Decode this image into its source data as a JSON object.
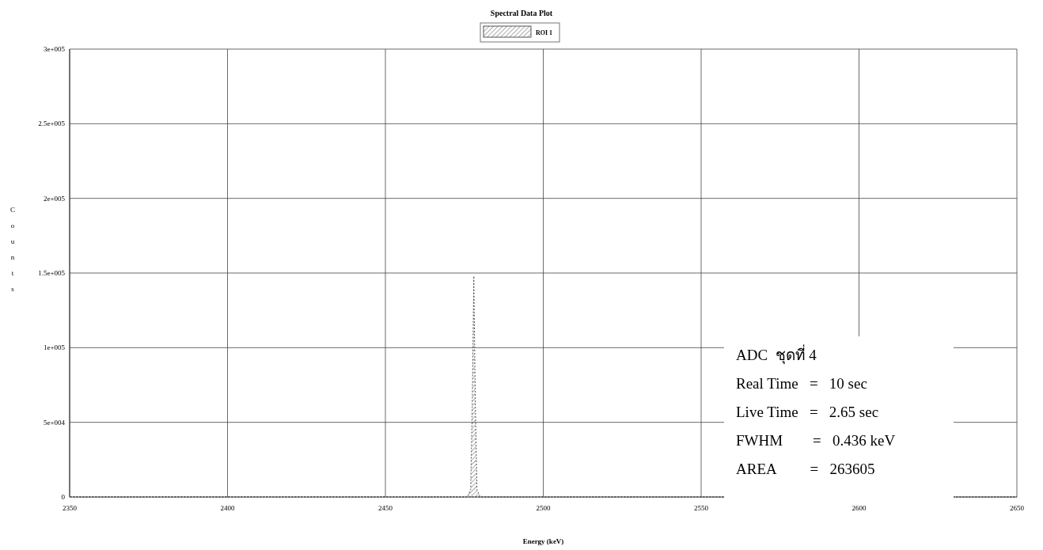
{
  "chart_data": {
    "type": "area",
    "title": "Spectral Data Plot",
    "xlabel": "Energy (keV)",
    "ylabel": "Counts",
    "x": [
      2350,
      2476,
      2477,
      2477.5,
      2478,
      2478.5,
      2479,
      2480,
      2650
    ],
    "series": [
      {
        "name": "ROI 1",
        "color": "#555555",
        "values": [
          0,
          0,
          5000,
          60000,
          148000,
          60000,
          5000,
          0,
          0
        ]
      }
    ],
    "xlim": [
      2350,
      2650
    ],
    "xticks": [
      2350,
      2400,
      2450,
      2500,
      2550,
      2600,
      2650
    ],
    "ylim": [
      0,
      300000
    ],
    "yticks": [
      0,
      {
        "value": 50000,
        "label": "5e+004"
      },
      {
        "value": 100000,
        "label": "1e+005"
      },
      {
        "value": 150000,
        "label": "1.5e+005"
      },
      {
        "value": 200000,
        "label": "2e+005"
      },
      {
        "value": 250000,
        "label": "2.5e+005"
      },
      {
        "value": 300000,
        "label": "3e+005"
      }
    ],
    "grid": true,
    "legend": "top",
    "annotations": [
      "ADC  ชุดที่ 4",
      "Real Time   =   10 sec",
      "Live Time   =   2.65 sec",
      "FWHM        =   0.436 keV",
      "AREA         =   263605"
    ]
  }
}
